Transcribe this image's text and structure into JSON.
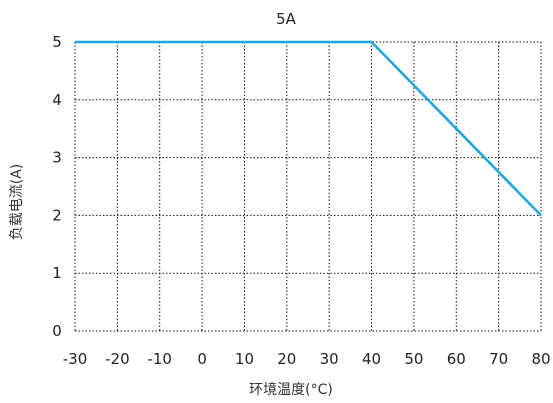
{
  "chart_data": {
    "type": "line",
    "title": "5A",
    "xlabel": "环境温度(°C)",
    "ylabel": "负载电流(A)",
    "x_ticks": [
      "-30",
      "-20",
      "-10",
      "0",
      "10",
      "20",
      "30",
      "40",
      "50",
      "60",
      "70",
      "80"
    ],
    "y_ticks": [
      "0",
      "1",
      "2",
      "3",
      "4",
      "5"
    ],
    "xlim": [
      -30,
      80
    ],
    "ylim": [
      0,
      5
    ],
    "grid": "dotted",
    "series": [
      {
        "values": [
          [
            -30,
            5
          ],
          [
            40,
            5
          ],
          [
            80,
            2
          ]
        ]
      }
    ],
    "colors": {
      "line": "#1ea6df",
      "grid": "#111111"
    }
  }
}
